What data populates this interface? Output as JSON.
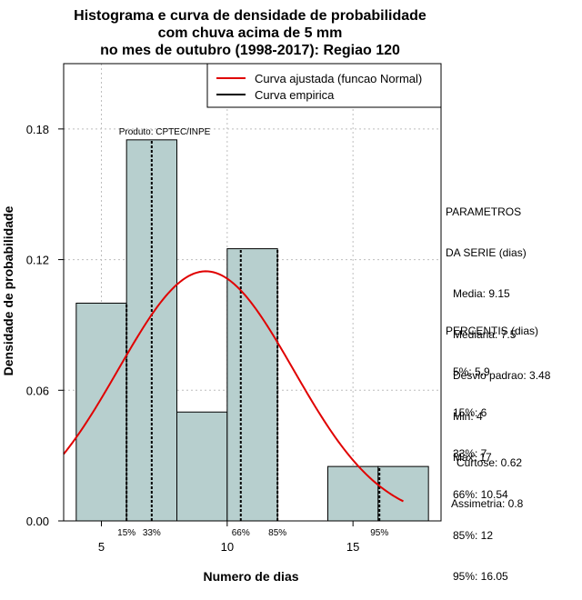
{
  "chart_data": {
    "type": "bar",
    "title_lines": [
      "Histograma e curva de densidade de probabilidade",
      "com chuva acima de 5 mm",
      "no mes de outubro (1998-2017): Regiao 120"
    ],
    "xlabel": "Numero de dias",
    "ylabel": "Densidade de probabilidade",
    "xlim": [
      3.5,
      18.5
    ],
    "ylim": [
      0,
      0.21
    ],
    "x_ticks": [
      "5",
      "10",
      "15"
    ],
    "y_ticks": [
      "0.00",
      "0.06",
      "0.12",
      "0.18"
    ],
    "bins": [
      {
        "x0": 4,
        "x1": 6,
        "density": 0.1
      },
      {
        "x0": 6,
        "x1": 8,
        "density": 0.175
      },
      {
        "x0": 8,
        "x1": 10,
        "density": 0.05
      },
      {
        "x0": 10,
        "x1": 12,
        "density": 0.125
      },
      {
        "x0": 12,
        "x1": 14,
        "density": 0
      },
      {
        "x0": 14,
        "x1": 16,
        "density": 0.025
      },
      {
        "x0": 16,
        "x1": 18,
        "density": 0.025
      }
    ],
    "normal_fit": {
      "mean": 9.15,
      "sd": 3.48,
      "x_from": 3.5,
      "x_to": 17
    },
    "percentile_markers": [
      {
        "label": "15%",
        "x": 6
      },
      {
        "label": "33%",
        "x": 7
      },
      {
        "label": "66%",
        "x": 10.54
      },
      {
        "label": "85%",
        "x": 12
      },
      {
        "label": "95%",
        "x": 16.05
      }
    ],
    "legend": [
      {
        "label": "Curva ajustada (funcao Normal)",
        "color": "#e00000"
      },
      {
        "label": "Curva empirica",
        "color": "#000000"
      }
    ],
    "credit": "Produto: CPTEC/INPE",
    "colors": {
      "bar_fill": "#b7cfce",
      "curve": "#e00000",
      "grid": "#bebebe"
    }
  },
  "stats": {
    "parametros_title": [
      "PARAMETROS",
      "DA SERIE (dias)"
    ],
    "parametros": [
      "Media: 9.15",
      "Mediana: 7.5",
      "Desvio padrao: 3.48",
      "Min: 4",
      "Max: 17"
    ],
    "percentis_title": "PERCENTIS (dias)",
    "percentis": [
      "5%: 5.9",
      "15%: 6",
      "33%: 7",
      "66%: 10.54",
      "85%: 12",
      "95%: 16.05"
    ],
    "shape": [
      "Curtose: 0.62",
      "Assimetria: 0.8"
    ]
  }
}
